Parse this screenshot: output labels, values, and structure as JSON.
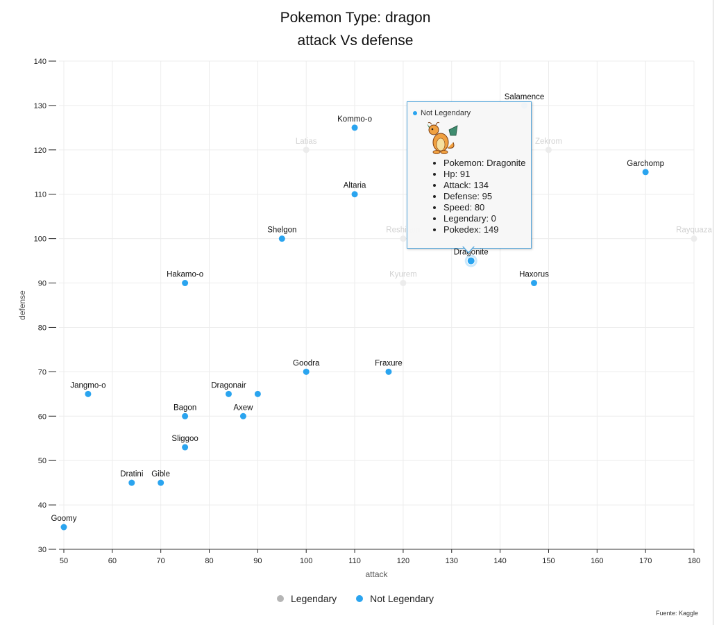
{
  "chart_data": {
    "type": "scatter",
    "title": "Pokemon Type: dragon",
    "subtitle": "attack Vs defense",
    "xlabel": "attack",
    "ylabel": "defense",
    "xlim": [
      49,
      180
    ],
    "ylim": [
      30,
      140
    ],
    "xticks": [
      50,
      60,
      70,
      80,
      90,
      100,
      110,
      120,
      130,
      140,
      150,
      160,
      170,
      180
    ],
    "yticks": [
      30,
      40,
      50,
      60,
      70,
      80,
      90,
      100,
      110,
      120,
      130,
      140
    ],
    "grid": true,
    "legend_position": "bottom-center",
    "series": [
      {
        "name": "Legendary",
        "color": "#b5b5b5",
        "dimmed": true,
        "points": [
          {
            "x": 100,
            "y": 120,
            "label": "Latias"
          },
          {
            "x": 150,
            "y": 120,
            "label": "Zekrom"
          },
          {
            "x": 120,
            "y": 100,
            "label": "Reshiram"
          },
          {
            "x": 180,
            "y": 100,
            "label": "Rayquaza"
          },
          {
            "x": 120,
            "y": 90,
            "label": "Kyurem"
          },
          {
            "x": 145,
            "y": 130,
            "label": ""
          }
        ]
      },
      {
        "name": "Not Legendary",
        "color": "#2aa4ef",
        "points": [
          {
            "x": 145,
            "y": 130,
            "label": "Salamence"
          },
          {
            "x": 110,
            "y": 125,
            "label": "Kommo-o"
          },
          {
            "x": 170,
            "y": 115,
            "label": "Garchomp"
          },
          {
            "x": 110,
            "y": 110,
            "label": "Altaria"
          },
          {
            "x": 95,
            "y": 100,
            "label": "Shelgon"
          },
          {
            "x": 134,
            "y": 95,
            "label": "Dragonite",
            "highlight": true
          },
          {
            "x": 75,
            "y": 90,
            "label": "Hakamo-o"
          },
          {
            "x": 147,
            "y": 90,
            "label": "Haxorus"
          },
          {
            "x": 100,
            "y": 70,
            "label": "Goodra"
          },
          {
            "x": 117,
            "y": 70,
            "label": "Fraxure"
          },
          {
            "x": 55,
            "y": 65,
            "label": "Jangmo-o"
          },
          {
            "x": 84,
            "y": 65,
            "label": "Dragonair"
          },
          {
            "x": 90,
            "y": 65,
            "label": ""
          },
          {
            "x": 75,
            "y": 60,
            "label": "Bagon"
          },
          {
            "x": 87,
            "y": 60,
            "label": "Axew"
          },
          {
            "x": 75,
            "y": 53,
            "label": "Sliggoo"
          },
          {
            "x": 64,
            "y": 45,
            "label": "Dratini"
          },
          {
            "x": 70,
            "y": 45,
            "label": "Gible"
          },
          {
            "x": 50,
            "y": 35,
            "label": "Goomy"
          }
        ]
      }
    ]
  },
  "legend": {
    "items": [
      {
        "label": "Legendary",
        "color": "#b5b5b5"
      },
      {
        "label": "Not Legendary",
        "color": "#2aa4ef"
      }
    ]
  },
  "tooltip": {
    "header": "Not Legendary",
    "lines": [
      "Pokemon: Dragonite",
      "Hp: 91",
      "Attack: 134",
      "Defense: 95",
      "Speed: 80",
      "Legendary: 0",
      "Pokedex: 149"
    ]
  },
  "credit": "Fuente: Kaggle"
}
